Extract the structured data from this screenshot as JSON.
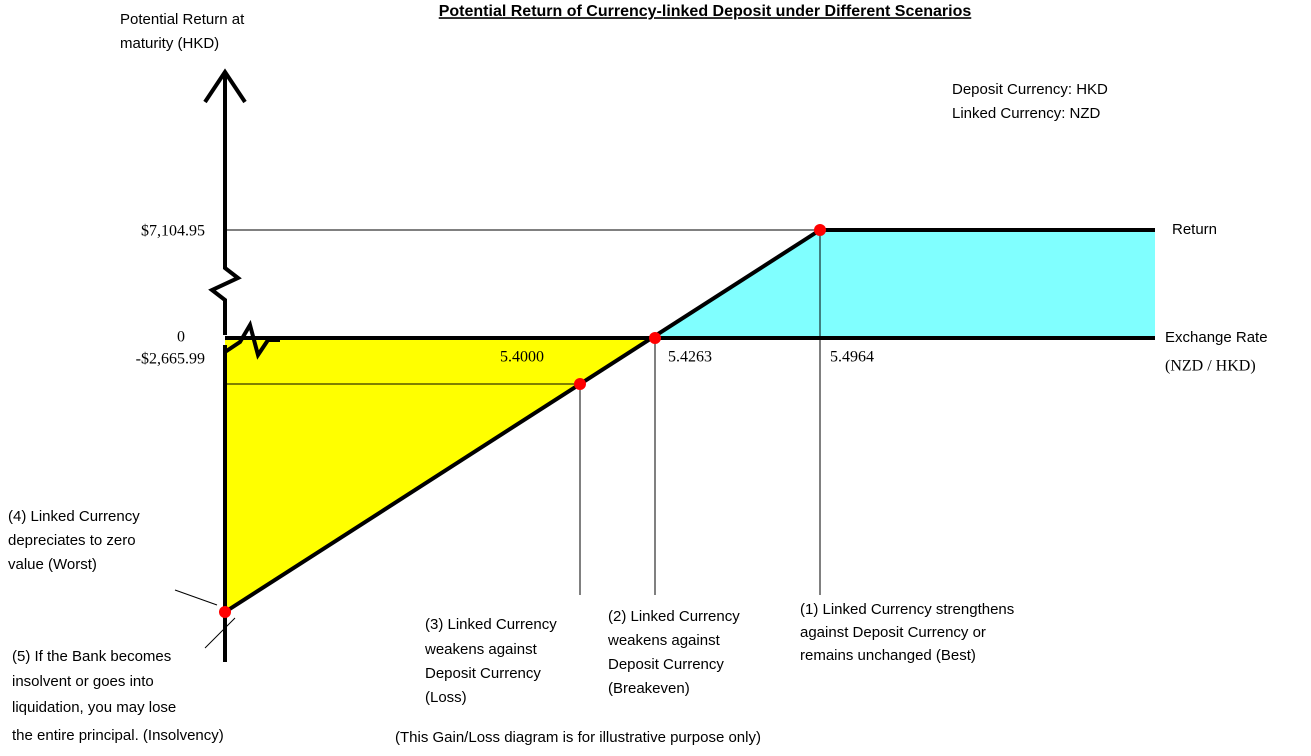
{
  "title": "Potential Return of Currency-linked Deposit under Different Scenarios",
  "y_axis_label": [
    "Potential Return at",
    "maturity (HKD)"
  ],
  "y_labels": {
    "return": "$7,104.95",
    "zero": "0",
    "loss": "-$2,665.99"
  },
  "x_labels": [
    "5.4000",
    "5.4263",
    "5.4964"
  ],
  "axis_notes": {
    "return": "Return",
    "x_axis": "Exchange Rate",
    "x_unit": "(NZD / HKD)"
  },
  "currencies": [
    "Deposit Currency: HKD",
    "Linked Currency: NZD"
  ],
  "scenarios": [
    {
      "lines": [
        "(1) Linked Currency strengthens",
        "against Deposit Currency or",
        "remains unchanged (Best)"
      ]
    },
    {
      "lines": [
        "(2) Linked Currency",
        "weakens against",
        "Deposit Currency",
        "(Breakeven)"
      ]
    },
    {
      "lines": [
        "(3) Linked Currency",
        "weakens against",
        "Deposit Currency",
        "(Loss)"
      ]
    },
    {
      "lines": [
        "(4) Linked Currency",
        "depreciates to zero",
        "value (Worst)"
      ]
    },
    {
      "lines": [
        "(5) If the Bank becomes",
        "insolvent or goes into",
        "liquidation, you may lose",
        "the entire principal.  (Insolvency)"
      ]
    }
  ],
  "footnote": "(This Gain/Loss diagram is for illustrative purpose only)"
}
